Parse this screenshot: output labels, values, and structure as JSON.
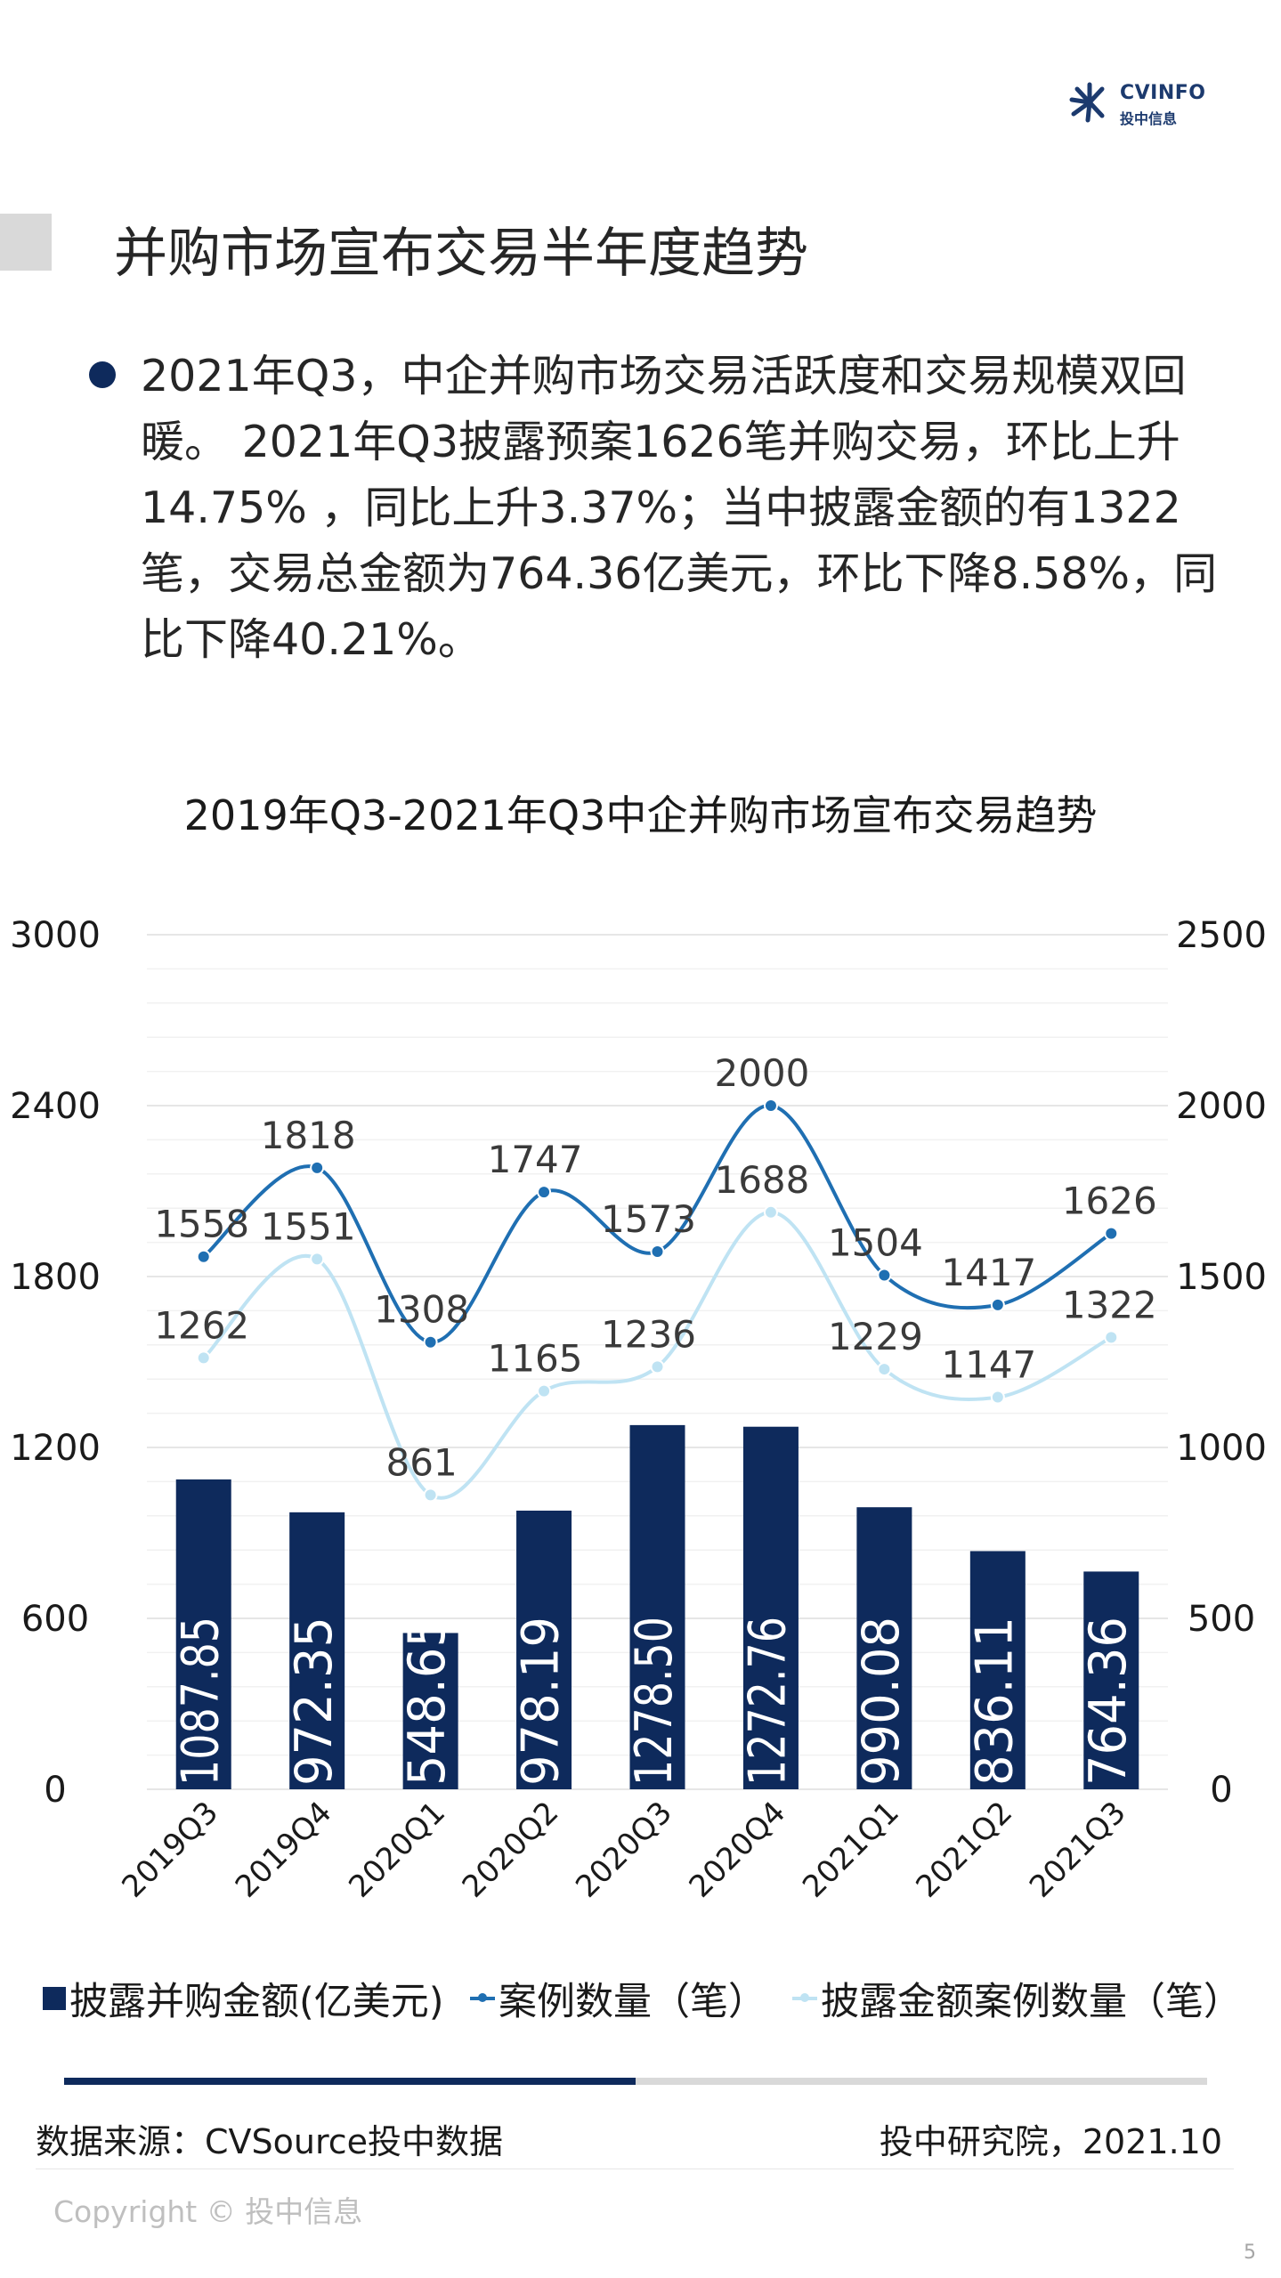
{
  "header": {
    "brand": "CVINFO",
    "brand_sub": "投中信息",
    "logo_icon": "cvinfo-burst-logo"
  },
  "title": "并购市场宣布交易半年度趋势",
  "bullet": "2021年Q3，中企并购市场交易活跃度和交易规模双回暖。 2021年Q3披露预案1626笔并购交易，环比上升14.75% ，同比上升3.37%；当中披露金额的有1322笔，交易总金额为764.36亿美元，环比下降8.58%，同比下降40.21%。",
  "chart_data": {
    "type": "bar",
    "title": "2019年Q3-2021年Q3中企并购市场宣布交易趋势",
    "categories": [
      "2019Q3",
      "2019Q4",
      "2020Q1",
      "2020Q2",
      "2020Q3",
      "2020Q4",
      "2021Q1",
      "2021Q2",
      "2021Q3"
    ],
    "y_left": {
      "min": 0,
      "max": 3000,
      "ticks": [
        0,
        600,
        1200,
        1800,
        2400,
        3000
      ]
    },
    "y_right": {
      "min": 0,
      "max": 2500,
      "ticks": [
        0,
        500,
        1000,
        1500,
        2000,
        2500
      ]
    },
    "grid": true,
    "legend_position": "bottom",
    "series": [
      {
        "name": "披露并购金额(亿美元)",
        "type": "bar",
        "axis": "left",
        "color": "#0e2a5c",
        "values": [
          1087.85,
          972.35,
          548.65,
          978.19,
          1278.5,
          1272.76,
          990.08,
          836.11,
          764.36
        ],
        "labels": [
          "1087.85",
          "972.35",
          "548.65",
          "978.19",
          "1278.50",
          "1272.76",
          "990.08",
          "836.11",
          "764.36"
        ]
      },
      {
        "name": "案例数量（笔）",
        "type": "line",
        "axis": "right",
        "color": "#1f6fb2",
        "values": [
          1558,
          1818,
          1308,
          1747,
          1573,
          2000,
          1504,
          1417,
          1626
        ]
      },
      {
        "name": "披露金额案例数量（笔）",
        "type": "line",
        "axis": "right",
        "color": "#bfe3f3",
        "values": [
          1262,
          1551,
          861,
          1165,
          1236,
          1688,
          1229,
          1147,
          1322
        ]
      }
    ]
  },
  "progress": {
    "fraction": 0.5
  },
  "footer": {
    "source": "数据来源：CVSource投中数据",
    "institute": "投中研究院，2021.10",
    "copyright": "Copyright © 投中信息",
    "page": "5"
  }
}
